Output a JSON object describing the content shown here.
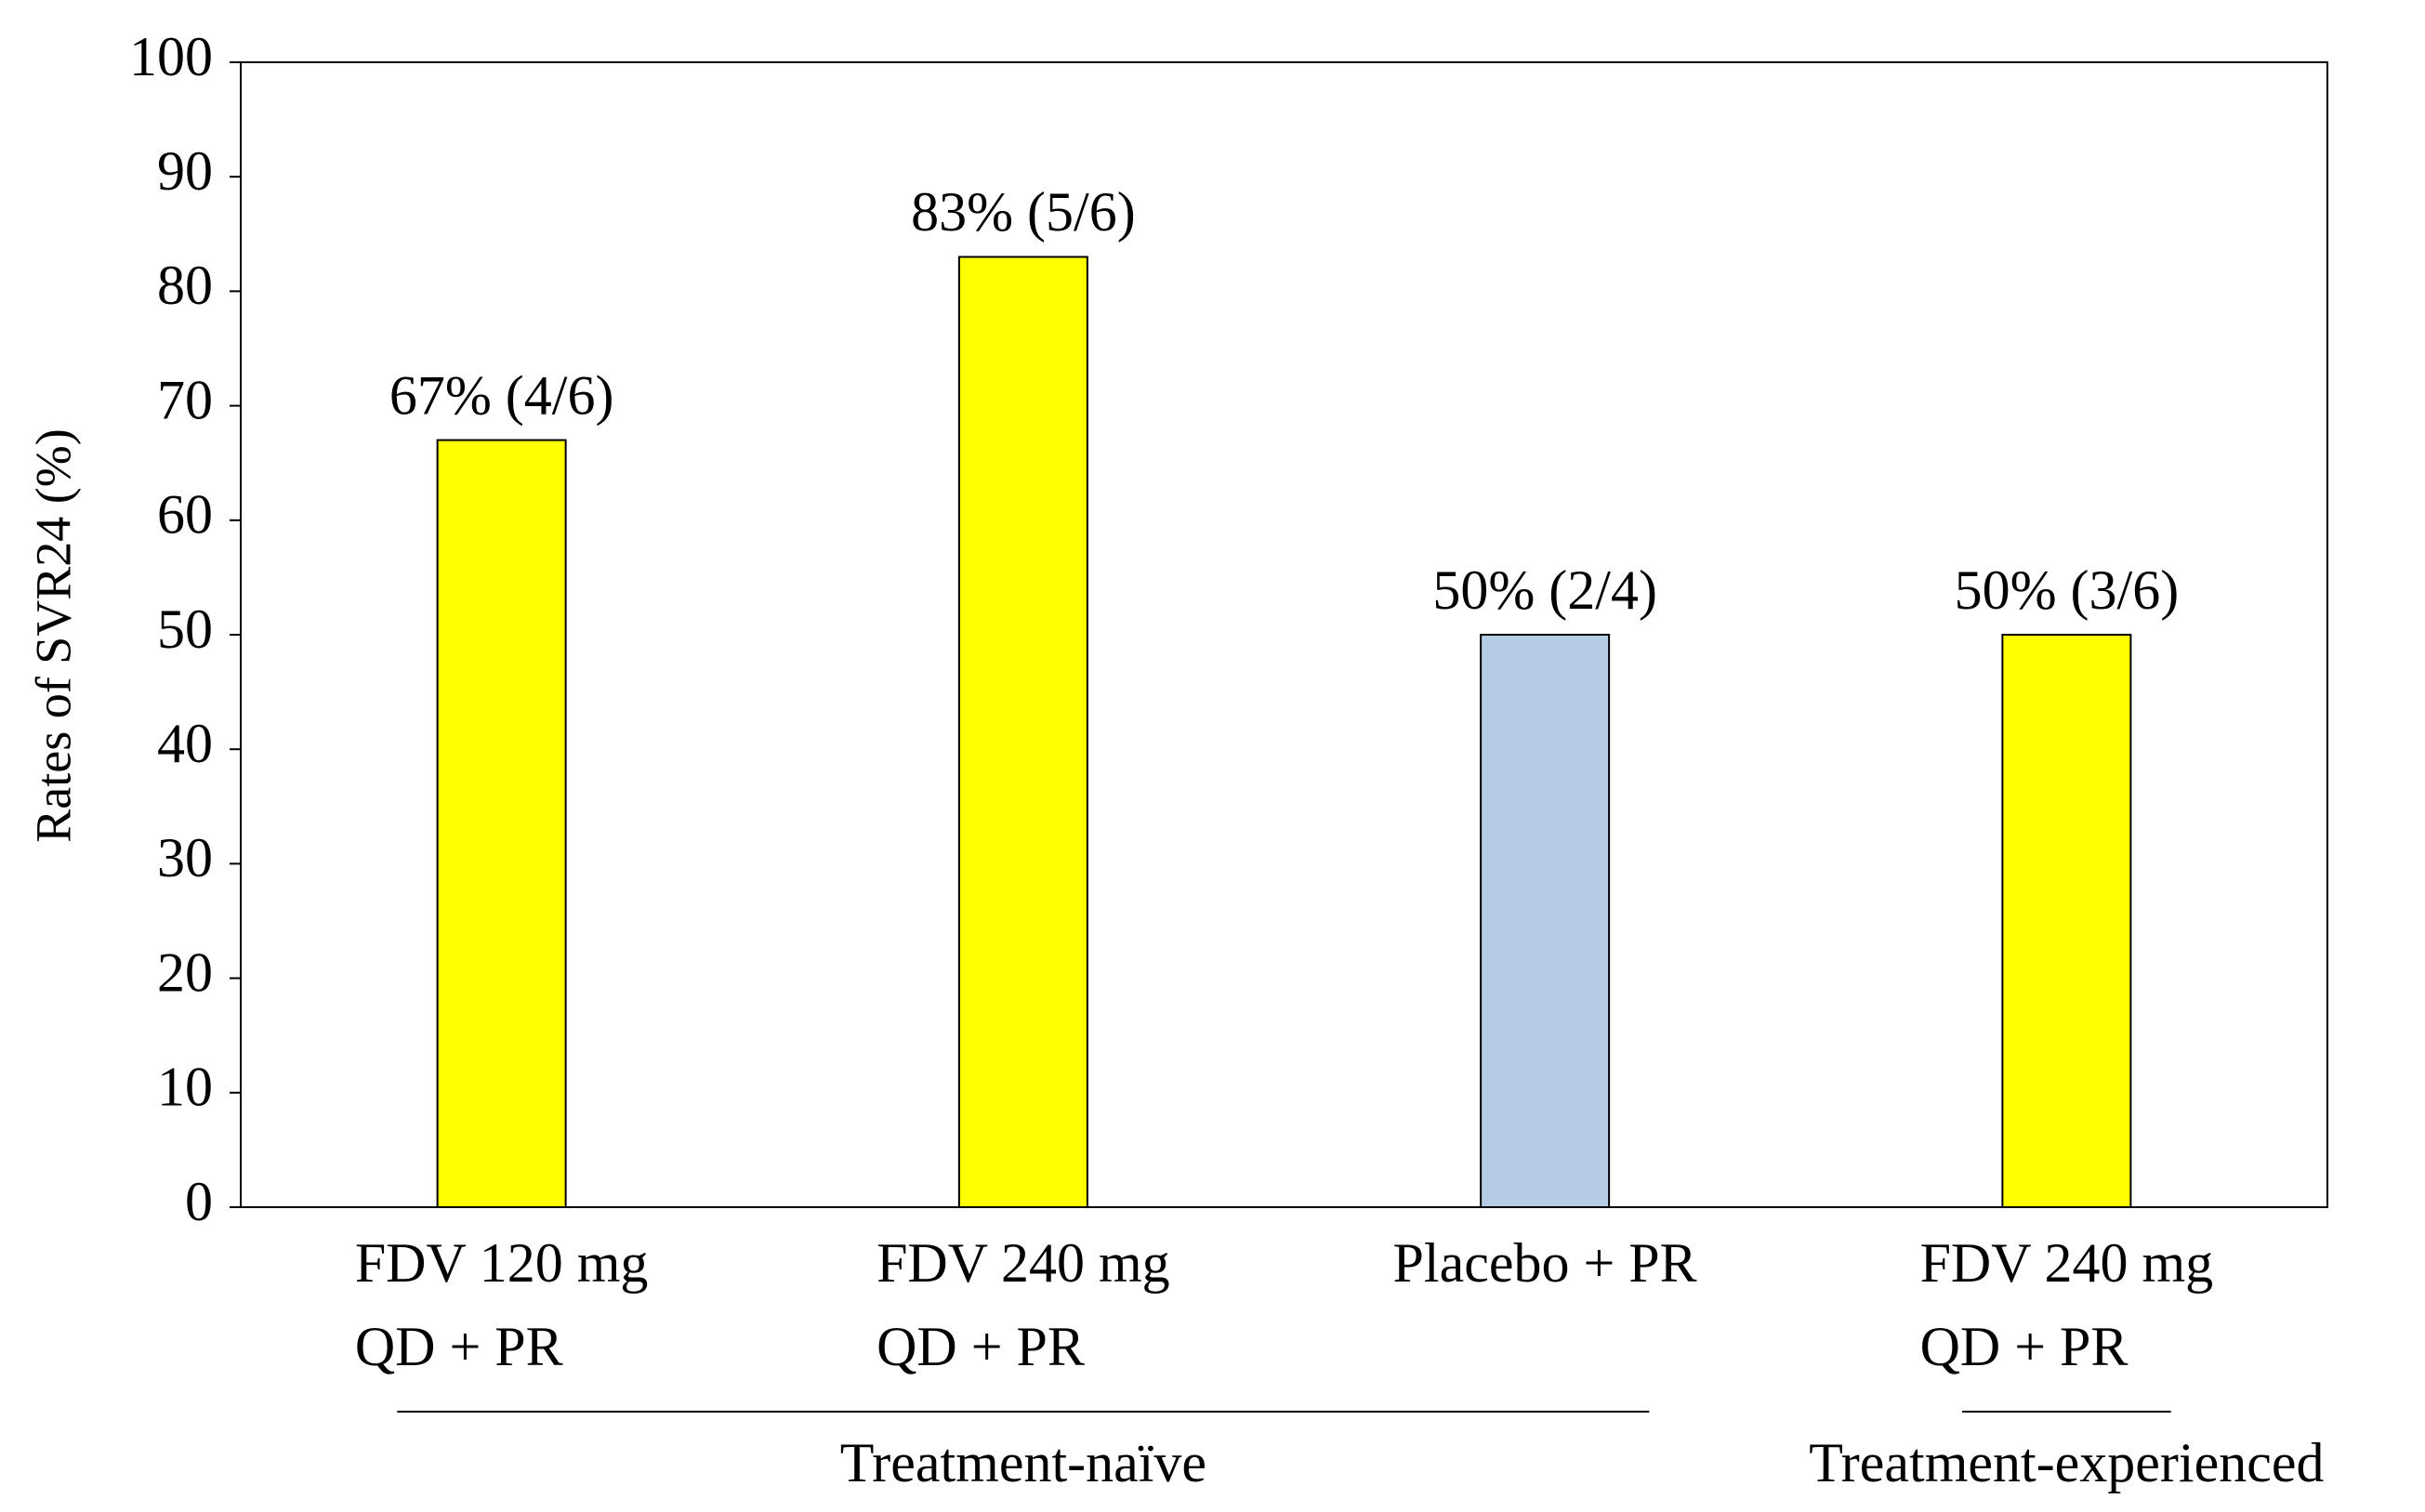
{
  "chart_data": {
    "type": "bar",
    "y_label": "Rates of SVR24 (%)",
    "categories": [
      [
        "FDV 120 mg",
        "QD + PR"
      ],
      [
        "FDV 240 mg",
        "QD + PR"
      ],
      [
        "Placebo + PR"
      ],
      [
        "FDV 240 mg",
        "QD + PR"
      ]
    ],
    "values": [
      67,
      83,
      50,
      50
    ],
    "value_labels": [
      "67% (4/6)",
      "83% (5/6)",
      "50% (2/4)",
      "50% (3/6)"
    ],
    "colors": [
      "#ffff00",
      "#ffff00",
      "#b4cde4",
      "#ffff00"
    ],
    "groups": [
      {
        "name": "Treatment-naïve",
        "size": 3
      },
      {
        "name": "Treatment-experienced",
        "size": 1
      }
    ],
    "ylim": [
      0,
      100
    ],
    "yticks": [
      0,
      10,
      20,
      30,
      40,
      50,
      60,
      70,
      80,
      90,
      100
    ],
    "grid": false
  }
}
